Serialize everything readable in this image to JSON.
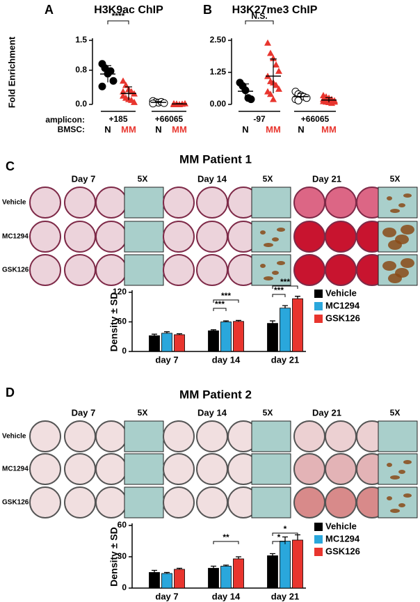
{
  "panel_labels": [
    "A",
    "B",
    "C",
    "D"
  ],
  "chart_data": [
    {
      "type": "dot",
      "title": "H3K9ac ChIP",
      "y_label": "Fold Enrichment",
      "ylim": [
        0,
        1.5
      ],
      "yticks": [
        {
          "value": 0,
          "label": "0.0"
        },
        0.8,
        1.5
      ],
      "row_labels": [
        "amplicon:",
        "BMSC:"
      ],
      "annotations": [
        "****"
      ],
      "groups": [
        {
          "amplicon": "+185",
          "series": [
            {
              "name": "N",
              "color": "#000000",
              "marker": "circle",
              "values": [
                0.95,
                0.85,
                0.72,
                0.78,
                0.55,
                0.42
              ]
            },
            {
              "name": "MM",
              "color": "#e8352e",
              "marker": "triangle",
              "values": [
                0.55,
                0.45,
                0.35,
                0.3,
                0.25,
                0.2,
                0.15,
                0.12,
                0.1,
                0.05,
                0.3
              ]
            }
          ]
        },
        {
          "amplicon": "+66065",
          "series": [
            {
              "name": "N",
              "color": "#ffffff",
              "marker": "circle",
              "values": [
                0.08,
                0.05,
                0.04,
                0.06,
                0.03,
                0.02
              ]
            },
            {
              "name": "MM",
              "color": "#e8352e",
              "marker": "triangle",
              "values": [
                0.02,
                0.01,
                0,
                0.01,
                0.02,
                0,
                0.01
              ]
            }
          ]
        }
      ]
    },
    {
      "type": "dot",
      "title": "H3K27me3 ChIP",
      "ylim": [
        0,
        2.5
      ],
      "yticks": [
        {
          "value": 0,
          "label": "0.00"
        },
        1.25,
        {
          "value": 2.5,
          "label": "2.50"
        }
      ],
      "annotations": [
        "N.S."
      ],
      "groups": [
        {
          "amplicon": "-97",
          "series": [
            {
              "name": "N",
              "color": "#000000",
              "marker": "circle",
              "values": [
                0.85,
                0.72,
                0.55,
                0.25,
                0.2
              ]
            },
            {
              "name": "MM",
              "color": "#e8352e",
              "marker": "triangle",
              "values": [
                2.4,
                2.0,
                1.8,
                1.55,
                1.3,
                1.1,
                0.9,
                0.85,
                0.75,
                0.6,
                0.5,
                0.4,
                0.2
              ]
            }
          ]
        },
        {
          "amplicon": "+66065",
          "series": [
            {
              "name": "N",
              "color": "#ffffff",
              "marker": "circle",
              "values": [
                0.5,
                0.4,
                0.35,
                0.3,
                0.25,
                0.2,
                0.15
              ]
            },
            {
              "name": "MM",
              "color": "#e8352e",
              "marker": "triangle",
              "values": [
                0.35,
                0.3,
                0.25,
                0.2,
                0.15,
                0.12,
                0.1,
                0.08,
                0.05,
                0.1,
                0.2,
                0.15
              ]
            }
          ]
        }
      ]
    },
    {
      "type": "bar",
      "title": "MM Patient 1",
      "y_label": "Density ± SD",
      "categories": [
        "day 7",
        "day 14",
        "day 21"
      ],
      "ylim": [
        0,
        120
      ],
      "yticks": [
        0,
        60,
        120
      ],
      "annotations": [
        "***",
        "***",
        "***",
        "***"
      ],
      "series": [
        {
          "name": "Vehicle",
          "color": "#000000",
          "values": [
            32,
            42,
            57
          ],
          "errors": [
            3,
            2,
            5
          ]
        },
        {
          "name": "MC1294",
          "color": "#2aa7dc",
          "values": [
            37,
            60,
            88
          ],
          "errors": [
            3,
            2,
            5
          ]
        },
        {
          "name": "GSK126",
          "color": "#e8352e",
          "values": [
            34,
            61,
            107
          ],
          "errors": [
            2,
            2,
            5
          ]
        }
      ]
    },
    {
      "type": "bar",
      "title": "MM Patient 2",
      "y_label": "Density ± SD",
      "categories": [
        "day 7",
        "day 14",
        "day 21"
      ],
      "ylim": [
        0,
        60
      ],
      "yticks": [
        0,
        30,
        60
      ],
      "annotations": [
        "**",
        "*",
        "*"
      ],
      "series": [
        {
          "name": "Vehicle",
          "color": "#000000",
          "values": [
            15,
            19,
            31
          ],
          "errors": [
            2,
            2,
            2
          ]
        },
        {
          "name": "MC1294",
          "color": "#2aa7dc",
          "values": [
            14,
            21,
            45
          ],
          "errors": [
            1,
            1,
            4
          ]
        },
        {
          "name": "GSK126",
          "color": "#e8352e",
          "values": [
            18,
            28,
            46
          ],
          "errors": [
            1,
            2,
            5
          ]
        }
      ]
    }
  ],
  "wells": [
    {
      "days": [
        "Day 7",
        "Day 14",
        "Day 21"
      ],
      "zoom": "5X",
      "treatments": [
        "Vehicle",
        "MC1294",
        "GSK126"
      ]
    },
    {
      "days": [
        "Day 7",
        "Day 14",
        "Day 21"
      ],
      "zoom": "5X",
      "treatments": [
        "Vehicle",
        "MC1294",
        "GSK126"
      ]
    }
  ]
}
